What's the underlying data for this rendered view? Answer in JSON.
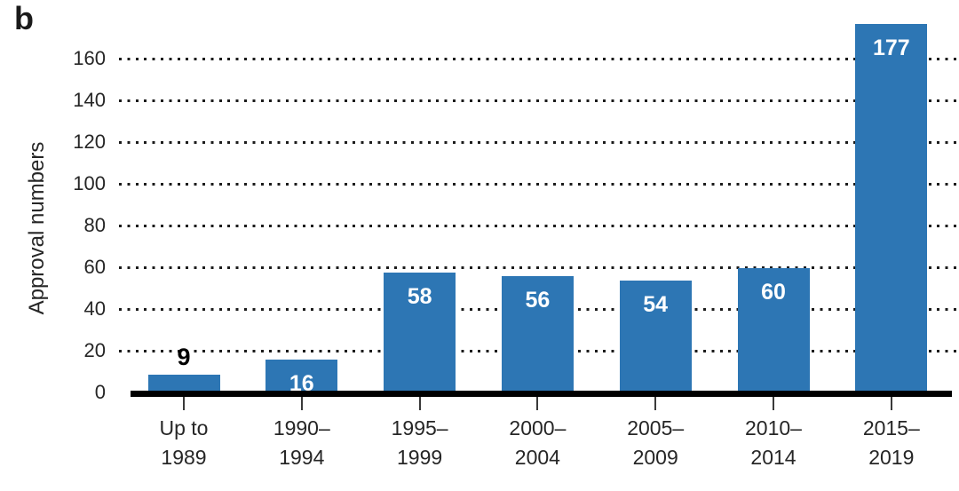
{
  "panel_label": "b",
  "chart_data": {
    "type": "bar",
    "title": "",
    "xlabel": "",
    "ylabel": "Approval numbers",
    "categories": [
      [
        "Up to",
        "1989"
      ],
      [
        "1990–",
        "1994"
      ],
      [
        "1995–",
        "1999"
      ],
      [
        "2000–",
        "2004"
      ],
      [
        "2005–",
        "2009"
      ],
      [
        "2010–",
        "2014"
      ],
      [
        "2015–",
        "2019"
      ]
    ],
    "values": [
      9,
      16,
      58,
      56,
      54,
      60,
      177
    ],
    "yticks": [
      0,
      20,
      40,
      60,
      80,
      100,
      120,
      140,
      160
    ],
    "ylim": [
      0,
      178
    ],
    "grid": "horizontal-dotted",
    "legend": "none",
    "colors": {
      "bar": "#2D76B4",
      "value_label_inside": "#FFFFFF",
      "value_label_outside": "#000000",
      "grid_dots": "#1B1B1B",
      "axis": "#000000",
      "tick_text": "#262626"
    }
  }
}
